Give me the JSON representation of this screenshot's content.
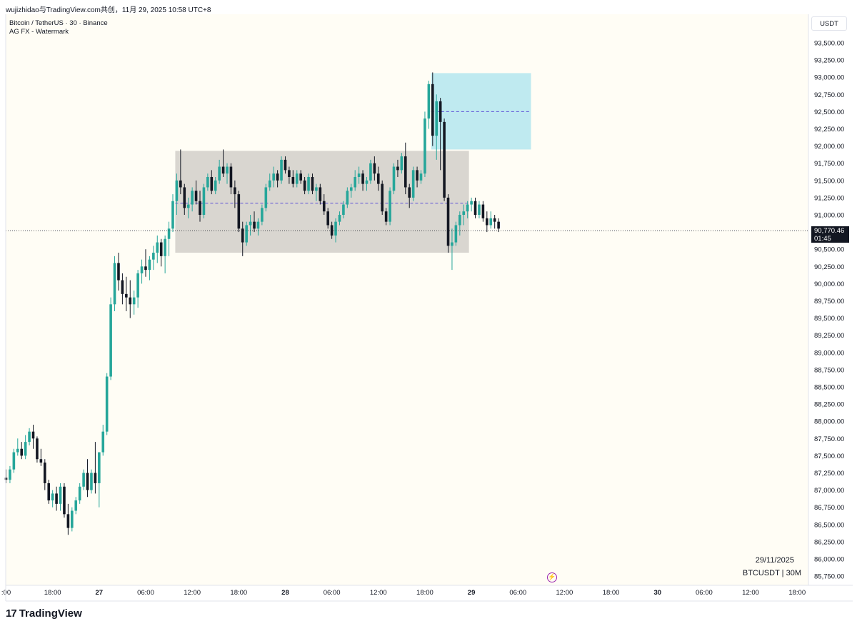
{
  "header": {
    "caption": "wujizhidao与TradingView.com共创，11月 29, 2025 10:58 UTC+8"
  },
  "legend": {
    "symbol_line": "Bitcoin / TetherUS · 30 · Binance",
    "indicator_line": "AG FX - Watermark"
  },
  "currency_label": "USDT",
  "current_price": {
    "value": "90,770.46",
    "countdown": "01:45"
  },
  "watermark": {
    "date": "29/11/2025",
    "symbol": "BTCUSDT | 30M"
  },
  "brand": {
    "logo_mark": "17",
    "name": "TradingView"
  },
  "colors": {
    "up": "#26a69a",
    "down": "#131722",
    "range_box": "#d9d6d0",
    "target_box": "#bfeaf0",
    "midline": "#5b4fd6",
    "background": "#fffdf5"
  },
  "chart_data": {
    "type": "candlestick",
    "interval": "30",
    "ylim": [
      85600,
      93700
    ],
    "y_ticks": [
      {
        "v": 93500,
        "label": "93,500.00"
      },
      {
        "v": 93250,
        "label": "93,250.00"
      },
      {
        "v": 93000,
        "label": "93,000.00"
      },
      {
        "v": 92750,
        "label": "92,750.00"
      },
      {
        "v": 92500,
        "label": "92,500.00"
      },
      {
        "v": 92250,
        "label": "92,250.00"
      },
      {
        "v": 92000,
        "label": "92,000.00"
      },
      {
        "v": 91750,
        "label": "91,750.00"
      },
      {
        "v": 91500,
        "label": "91,500.00"
      },
      {
        "v": 91250,
        "label": "91,250.00"
      },
      {
        "v": 91000,
        "label": "91,000.00"
      },
      {
        "v": 90500,
        "label": "90,500.00"
      },
      {
        "v": 90250,
        "label": "90,250.00"
      },
      {
        "v": 90000,
        "label": "90,000.00"
      },
      {
        "v": 89750,
        "label": "89,750.00"
      },
      {
        "v": 89500,
        "label": "89,500.00"
      },
      {
        "v": 89250,
        "label": "89,250.00"
      },
      {
        "v": 89000,
        "label": "89,000.00"
      },
      {
        "v": 88750,
        "label": "88,750.00"
      },
      {
        "v": 88500,
        "label": "88,500.00"
      },
      {
        "v": 88250,
        "label": "88,250.00"
      },
      {
        "v": 88000,
        "label": "88,000.00"
      },
      {
        "v": 87750,
        "label": "87,750.00"
      },
      {
        "v": 87500,
        "label": "87,500.00"
      },
      {
        "v": 87250,
        "label": "87,250.00"
      },
      {
        "v": 87000,
        "label": "87,000.00"
      },
      {
        "v": 86750,
        "label": "86,750.00"
      },
      {
        "v": 86500,
        "label": "86,500.00"
      },
      {
        "v": 86250,
        "label": "86,250.00"
      },
      {
        "v": 86000,
        "label": "86,000.00"
      },
      {
        "v": 85750,
        "label": "85,750.00"
      }
    ],
    "x_ticks": [
      {
        "i": 0,
        "label": ":00",
        "bold": false
      },
      {
        "i": 12,
        "label": "18:00",
        "bold": false
      },
      {
        "i": 24,
        "label": "27",
        "bold": true
      },
      {
        "i": 36,
        "label": "06:00",
        "bold": false
      },
      {
        "i": 48,
        "label": "12:00",
        "bold": false
      },
      {
        "i": 60,
        "label": "18:00",
        "bold": false
      },
      {
        "i": 72,
        "label": "28",
        "bold": true
      },
      {
        "i": 84,
        "label": "06:00",
        "bold": false
      },
      {
        "i": 96,
        "label": "12:00",
        "bold": false
      },
      {
        "i": 108,
        "label": "18:00",
        "bold": false
      },
      {
        "i": 120,
        "label": "29",
        "bold": true
      },
      {
        "i": 132,
        "label": "06:00",
        "bold": false
      },
      {
        "i": 144,
        "label": "12:00",
        "bold": false
      },
      {
        "i": 156,
        "label": "18:00",
        "bold": false
      },
      {
        "i": 168,
        "label": "30",
        "bold": true
      },
      {
        "i": 180,
        "label": "06:00",
        "bold": false
      },
      {
        "i": 192,
        "label": "12:00",
        "bold": false
      },
      {
        "i": 204,
        "label": "18:00",
        "bold": false
      }
    ],
    "current_price": 90770.46,
    "range_box": {
      "from_index": 44,
      "to_index": 119,
      "top": 91930,
      "bottom": 90450,
      "mid": 91170
    },
    "target_box": {
      "from_index": 110,
      "to_index": 135,
      "top": 93060,
      "bottom": 91950,
      "mid": 92500
    },
    "candles": [
      [
        87180,
        87300,
        87100,
        87150
      ],
      [
        87150,
        87350,
        87100,
        87300
      ],
      [
        87300,
        87600,
        87250,
        87550
      ],
      [
        87550,
        87750,
        87500,
        87600
      ],
      [
        87600,
        87700,
        87450,
        87500
      ],
      [
        87500,
        87800,
        87450,
        87700
      ],
      [
        87700,
        87900,
        87650,
        87850
      ],
      [
        87850,
        87950,
        87600,
        87750
      ],
      [
        87750,
        87780,
        87400,
        87450
      ],
      [
        87450,
        87600,
        87350,
        87400
      ],
      [
        87400,
        87450,
        87000,
        87100
      ],
      [
        87100,
        87150,
        86800,
        86850
      ],
      [
        86850,
        87000,
        86750,
        86950
      ],
      [
        86950,
        87050,
        86700,
        86800
      ],
      [
        86800,
        87100,
        86700,
        87050
      ],
      [
        87050,
        87100,
        86600,
        86650
      ],
      [
        86650,
        86800,
        86350,
        86450
      ],
      [
        86450,
        86750,
        86400,
        86700
      ],
      [
        86700,
        86900,
        86650,
        86850
      ],
      [
        86850,
        87100,
        86800,
        87050
      ],
      [
        87050,
        87300,
        87000,
        87250
      ],
      [
        87250,
        87450,
        86900,
        87000
      ],
      [
        87000,
        87300,
        86950,
        87250
      ],
      [
        87250,
        87700,
        86950,
        87100
      ],
      [
        87100,
        87550,
        86750,
        87550
      ],
      [
        87550,
        87950,
        87500,
        87850
      ],
      [
        87850,
        88700,
        87800,
        88650
      ],
      [
        88650,
        89800,
        88600,
        89700
      ],
      [
        89700,
        90400,
        89600,
        90300
      ],
      [
        90300,
        90450,
        89900,
        90050
      ],
      [
        90050,
        90150,
        89700,
        89850
      ],
      [
        89850,
        90100,
        89600,
        89800
      ],
      [
        89800,
        90050,
        89500,
        89700
      ],
      [
        89700,
        89900,
        89550,
        89800
      ],
      [
        89800,
        90200,
        89650,
        90150
      ],
      [
        90150,
        90350,
        90000,
        90250
      ],
      [
        90250,
        90500,
        90100,
        90200
      ],
      [
        90200,
        90400,
        90050,
        90350
      ],
      [
        90350,
        90550,
        90200,
        90450
      ],
      [
        90450,
        90700,
        90300,
        90600
      ],
      [
        90600,
        90650,
        90250,
        90400
      ],
      [
        90400,
        90700,
        90150,
        90650
      ],
      [
        90650,
        90900,
        90400,
        90800
      ],
      [
        90800,
        91300,
        90750,
        91200
      ],
      [
        91200,
        91600,
        91000,
        91500
      ],
      [
        91500,
        91950,
        91300,
        91400
      ],
      [
        91400,
        91450,
        91000,
        91100
      ],
      [
        91100,
        91250,
        90950,
        91150
      ],
      [
        91150,
        91400,
        91050,
        91350
      ],
      [
        91350,
        91500,
        91150,
        91200
      ],
      [
        91200,
        91350,
        90900,
        91000
      ],
      [
        91000,
        91450,
        90950,
        91400
      ],
      [
        91400,
        91600,
        91350,
        91550
      ],
      [
        91550,
        91650,
        91300,
        91350
      ],
      [
        91350,
        91550,
        91300,
        91500
      ],
      [
        91500,
        91800,
        91450,
        91700
      ],
      [
        91700,
        91950,
        91550,
        91600
      ],
      [
        91600,
        91750,
        91450,
        91700
      ],
      [
        91700,
        91750,
        91300,
        91400
      ],
      [
        91400,
        91500,
        91100,
        91300
      ],
      [
        91300,
        91350,
        90750,
        90800
      ],
      [
        90800,
        90900,
        90400,
        90600
      ],
      [
        90600,
        90900,
        90550,
        90850
      ],
      [
        90850,
        91000,
        90700,
        90900
      ],
      [
        90900,
        91050,
        90750,
        90800
      ],
      [
        90800,
        90950,
        90700,
        90900
      ],
      [
        90900,
        91150,
        90850,
        91100
      ],
      [
        91100,
        91450,
        91050,
        91400
      ],
      [
        91400,
        91600,
        91350,
        91500
      ],
      [
        91500,
        91700,
        91400,
        91600
      ],
      [
        91600,
        91650,
        91400,
        91500
      ],
      [
        91500,
        91850,
        91450,
        91800
      ],
      [
        91800,
        91850,
        91600,
        91650
      ],
      [
        91650,
        91700,
        91450,
        91550
      ],
      [
        91550,
        91650,
        91400,
        91450
      ],
      [
        91450,
        91650,
        91400,
        91600
      ],
      [
        91600,
        91650,
        91450,
        91500
      ],
      [
        91500,
        91550,
        91300,
        91350
      ],
      [
        91350,
        91600,
        91300,
        91550
      ],
      [
        91550,
        91600,
        91300,
        91350
      ],
      [
        91350,
        91450,
        91200,
        91400
      ],
      [
        91400,
        91450,
        91150,
        91200
      ],
      [
        91200,
        91300,
        91000,
        91050
      ],
      [
        91050,
        91100,
        90800,
        90850
      ],
      [
        90850,
        90900,
        90650,
        90700
      ],
      [
        90700,
        90950,
        90600,
        90900
      ],
      [
        90900,
        91050,
        90850,
        91000
      ],
      [
        91000,
        91200,
        90950,
        91150
      ],
      [
        91150,
        91400,
        91100,
        91350
      ],
      [
        91350,
        91450,
        91250,
        91400
      ],
      [
        91400,
        91650,
        91350,
        91550
      ],
      [
        91550,
        91700,
        91450,
        91600
      ],
      [
        91600,
        91650,
        91350,
        91450
      ],
      [
        91450,
        91550,
        91350,
        91500
      ],
      [
        91500,
        91800,
        91450,
        91750
      ],
      [
        91750,
        91850,
        91500,
        91600
      ],
      [
        91600,
        91700,
        91350,
        91450
      ],
      [
        91450,
        91500,
        91000,
        91050
      ],
      [
        91050,
        91100,
        90850,
        90900
      ],
      [
        90900,
        91400,
        90850,
        91350
      ],
      [
        91350,
        91750,
        91300,
        91700
      ],
      [
        91700,
        91800,
        91550,
        91650
      ],
      [
        91650,
        91900,
        91600,
        91850
      ],
      [
        91850,
        92050,
        91300,
        91400
      ],
      [
        91400,
        91450,
        91100,
        91250
      ],
      [
        91250,
        91700,
        91200,
        91650
      ],
      [
        91650,
        91700,
        91400,
        91500
      ],
      [
        91500,
        91650,
        91450,
        91600
      ],
      [
        91600,
        92500,
        91550,
        92400
      ],
      [
        92400,
        92950,
        92250,
        92900
      ],
      [
        92900,
        93070,
        92000,
        92150
      ],
      [
        92150,
        92750,
        91800,
        92650
      ],
      [
        92650,
        92700,
        91650,
        92350
      ],
      [
        92350,
        92400,
        91200,
        91250
      ],
      [
        91250,
        91300,
        90450,
        90550
      ],
      [
        90550,
        90800,
        90200,
        90600
      ],
      [
        90600,
        90900,
        90550,
        90850
      ],
      [
        90850,
        91050,
        90700,
        91000
      ],
      [
        91000,
        91150,
        90850,
        91050
      ],
      [
        91050,
        91200,
        90950,
        91150
      ],
      [
        91150,
        91250,
        91050,
        91200
      ],
      [
        91200,
        91250,
        90950,
        91000
      ],
      [
        91000,
        91200,
        90950,
        91150
      ],
      [
        91150,
        91200,
        90900,
        90950
      ],
      [
        90950,
        91050,
        90750,
        90850
      ],
      [
        90850,
        91050,
        90800,
        90950
      ],
      [
        90950,
        91000,
        90800,
        90900
      ],
      [
        90900,
        90950,
        90750,
        90800
      ]
    ]
  }
}
